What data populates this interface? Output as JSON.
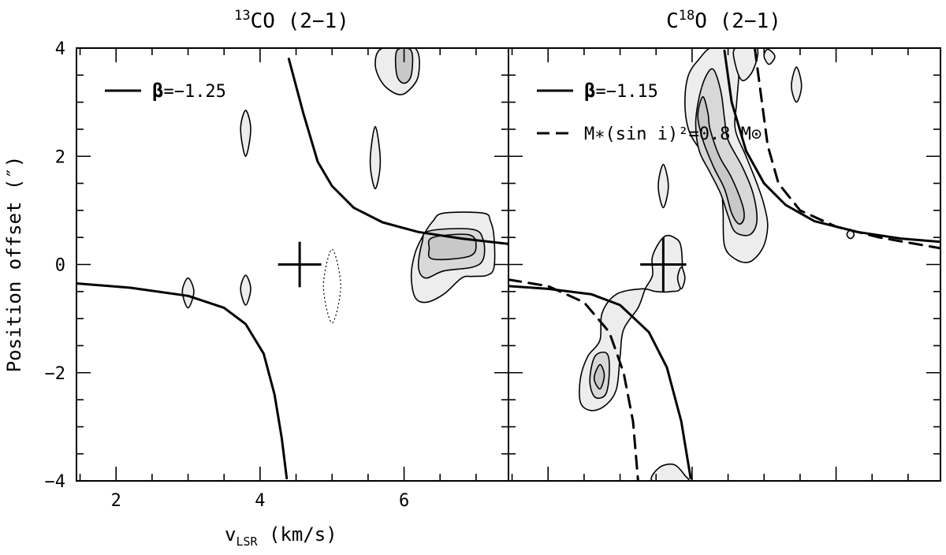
{
  "chart_data": [
    {
      "type": "contour",
      "title": {
        "sup": "13",
        "rest": "CO (2−1)"
      },
      "xlabel": {
        "main": "v",
        "sub": "LSR",
        "rest": " (km/s)"
      },
      "ylabel": "Position offset (″)",
      "xlim": [
        1.45,
        7.45
      ],
      "ylim": [
        -4,
        4
      ],
      "xticks": [
        2,
        4,
        6
      ],
      "yticks": [
        -4,
        -2,
        0,
        2,
        4
      ],
      "xtick_labels": [
        "2",
        "4",
        "6"
      ],
      "ytick_labels": [
        "−4",
        "−2",
        "0",
        "2",
        "4"
      ],
      "grid": false,
      "legend": {
        "placement": "top-left",
        "entries": [
          {
            "style": "solid",
            "symbol": "β",
            "text": "=−1.25"
          }
        ]
      },
      "model_curves": [
        {
          "style": "solid",
          "points": [
            [
              4.4,
              3.8
            ],
            [
              4.6,
              2.8
            ],
            [
              4.8,
              1.9
            ],
            [
              5.0,
              1.45
            ],
            [
              5.3,
              1.05
            ],
            [
              5.7,
              0.78
            ],
            [
              6.2,
              0.6
            ],
            [
              6.8,
              0.48
            ],
            [
              7.45,
              0.38
            ]
          ]
        },
        {
          "style": "solid",
          "points": [
            [
              1.45,
              -0.35
            ],
            [
              2.2,
              -0.43
            ],
            [
              3.0,
              -0.58
            ],
            [
              3.5,
              -0.8
            ],
            [
              3.8,
              -1.1
            ],
            [
              4.05,
              -1.65
            ],
            [
              4.2,
              -2.4
            ],
            [
              4.3,
              -3.2
            ],
            [
              4.37,
              -3.95
            ]
          ]
        }
      ],
      "contours": [
        {
          "level": "low",
          "points": [
            [
              6.15,
              4.0
            ],
            [
              6.2,
              3.5
            ],
            [
              6.05,
              3.2
            ],
            [
              5.9,
              3.15
            ],
            [
              5.7,
              3.35
            ],
            [
              5.6,
              3.7
            ],
            [
              5.7,
              4.0
            ]
          ]
        },
        {
          "level": "high",
          "points": [
            [
              6.1,
              3.95
            ],
            [
              6.1,
              3.5
            ],
            [
              6.0,
              3.35
            ],
            [
              5.9,
              3.5
            ],
            [
              5.9,
              3.95
            ]
          ]
        },
        {
          "level": "low",
          "points": [
            [
              6.4,
              0.8
            ],
            [
              6.55,
              0.95
            ],
            [
              7.1,
              0.95
            ],
            [
              7.2,
              0.8
            ],
            [
              7.25,
              0.5
            ],
            [
              7.25,
              -0.05
            ],
            [
              7.15,
              -0.2
            ],
            [
              6.95,
              -0.22
            ],
            [
              6.8,
              -0.25
            ],
            [
              6.55,
              -0.55
            ],
            [
              6.3,
              -0.7
            ],
            [
              6.15,
              -0.6
            ],
            [
              6.1,
              -0.2
            ],
            [
              6.15,
              0.2
            ],
            [
              6.25,
              0.5
            ]
          ]
        },
        {
          "level": "mid",
          "points": [
            [
              6.35,
              0.62
            ],
            [
              6.95,
              0.65
            ],
            [
              7.1,
              0.45
            ],
            [
              7.1,
              0.1
            ],
            [
              6.95,
              -0.05
            ],
            [
              6.55,
              -0.12
            ],
            [
              6.3,
              -0.25
            ],
            [
              6.2,
              -0.05
            ],
            [
              6.25,
              0.4
            ]
          ]
        },
        {
          "level": "high",
          "points": [
            [
              6.4,
              0.5
            ],
            [
              6.9,
              0.55
            ],
            [
              7.0,
              0.35
            ],
            [
              6.9,
              0.15
            ],
            [
              6.4,
              0.1
            ],
            [
              6.35,
              0.3
            ]
          ]
        },
        {
          "level": "low",
          "points": [
            [
              3.8,
              2.85
            ],
            [
              3.87,
              2.5
            ],
            [
              3.8,
              2.0
            ],
            [
              3.73,
              2.5
            ]
          ]
        },
        {
          "level": "low",
          "points": [
            [
              5.6,
              2.55
            ],
            [
              5.67,
              1.9
            ],
            [
              5.6,
              1.4
            ],
            [
              5.53,
              1.9
            ]
          ]
        },
        {
          "level": "low",
          "points": [
            [
              3.0,
              -0.25
            ],
            [
              3.08,
              -0.5
            ],
            [
              3.0,
              -0.8
            ],
            [
              2.92,
              -0.5
            ]
          ]
        },
        {
          "level": "low",
          "points": [
            [
              3.8,
              -0.2
            ],
            [
              3.87,
              -0.45
            ],
            [
              3.8,
              -0.75
            ],
            [
              3.73,
              -0.45
            ]
          ]
        },
        {
          "level": "negative",
          "points": [
            [
              5.0,
              0.28
            ],
            [
              5.12,
              -0.4
            ],
            [
              5.0,
              -1.08
            ],
            [
              4.88,
              -0.4
            ]
          ]
        }
      ],
      "marker": {
        "type": "cross",
        "x": 4.55,
        "y": 0.0,
        "half_width": 0.3,
        "half_height": 0.42
      }
    },
    {
      "type": "contour",
      "title": {
        "pre": "C",
        "sup": "18",
        "rest": "O (2−1)"
      },
      "xlim": [
        1.45,
        7.45
      ],
      "ylim": [
        -4,
        4
      ],
      "xticks": [
        2,
        4,
        6
      ],
      "yticks": [
        -4,
        -2,
        0,
        2,
        4
      ],
      "grid": false,
      "legend": {
        "placement": "top-left",
        "entries": [
          {
            "style": "solid",
            "symbol": "β",
            "text": "=−1.15"
          },
          {
            "style": "dashed",
            "text": "M∗(sin i)²=0.8 M⊙"
          }
        ]
      },
      "model_curves": [
        {
          "style": "solid",
          "points": [
            [
              4.45,
              3.95
            ],
            [
              4.55,
              3.0
            ],
            [
              4.75,
              2.1
            ],
            [
              5.0,
              1.5
            ],
            [
              5.3,
              1.1
            ],
            [
              5.7,
              0.8
            ],
            [
              6.3,
              0.6
            ],
            [
              6.9,
              0.48
            ],
            [
              7.45,
              0.42
            ]
          ]
        },
        {
          "style": "solid",
          "points": [
            [
              1.45,
              -0.4
            ],
            [
              2.0,
              -0.45
            ],
            [
              2.6,
              -0.55
            ],
            [
              3.0,
              -0.75
            ],
            [
              3.4,
              -1.25
            ],
            [
              3.65,
              -1.9
            ],
            [
              3.85,
              -2.9
            ],
            [
              3.98,
              -3.95
            ]
          ]
        },
        {
          "style": "dashed",
          "points": [
            [
              4.87,
              4.0
            ],
            [
              4.95,
              3.2
            ],
            [
              5.05,
              2.2
            ],
            [
              5.2,
              1.5
            ],
            [
              5.5,
              1.0
            ],
            [
              6.0,
              0.7
            ],
            [
              6.6,
              0.5
            ],
            [
              7.45,
              0.3
            ]
          ]
        },
        {
          "style": "dashed",
          "points": [
            [
              1.45,
              -0.28
            ],
            [
              2.0,
              -0.4
            ],
            [
              2.5,
              -0.7
            ],
            [
              2.85,
              -1.25
            ],
            [
              3.05,
              -2.0
            ],
            [
              3.18,
              -2.9
            ],
            [
              3.25,
              -4.0
            ]
          ]
        }
      ],
      "contours": [
        {
          "level": "low",
          "points": [
            [
              4.43,
              4.0
            ],
            [
              4.6,
              4.0
            ],
            [
              4.65,
              3.6
            ],
            [
              4.62,
              3.0
            ],
            [
              4.6,
              2.5
            ],
            [
              4.75,
              2.0
            ],
            [
              4.9,
              1.5
            ],
            [
              5.0,
              1.1
            ],
            [
              5.05,
              0.7
            ],
            [
              4.98,
              0.3
            ],
            [
              4.8,
              0.05
            ],
            [
              4.6,
              0.1
            ],
            [
              4.45,
              0.35
            ],
            [
              4.43,
              1.0
            ],
            [
              4.4,
              1.5
            ],
            [
              4.3,
              1.9
            ],
            [
              4.1,
              2.15
            ],
            [
              3.95,
              2.5
            ],
            [
              3.9,
              3.0
            ],
            [
              3.95,
              3.5
            ],
            [
              4.1,
              3.8
            ],
            [
              4.25,
              4.0
            ]
          ]
        },
        {
          "level": "mid",
          "points": [
            [
              4.3,
              3.6
            ],
            [
              4.4,
              3.2
            ],
            [
              4.45,
              2.7
            ],
            [
              4.5,
              2.3
            ],
            [
              4.7,
              1.8
            ],
            [
              4.85,
              1.3
            ],
            [
              4.9,
              0.8
            ],
            [
              4.8,
              0.55
            ],
            [
              4.6,
              0.6
            ],
            [
              4.5,
              0.9
            ],
            [
              4.4,
              1.3
            ],
            [
              4.25,
              1.7
            ],
            [
              4.1,
              2.1
            ],
            [
              4.05,
              2.6
            ],
            [
              4.1,
              3.1
            ],
            [
              4.2,
              3.5
            ]
          ]
        },
        {
          "level": "high",
          "points": [
            [
              4.15,
              3.1
            ],
            [
              4.22,
              2.8
            ],
            [
              4.25,
              2.5
            ],
            [
              4.38,
              2.0
            ],
            [
              4.55,
              1.6
            ],
            [
              4.7,
              1.1
            ],
            [
              4.72,
              0.85
            ],
            [
              4.65,
              0.75
            ],
            [
              4.55,
              0.95
            ],
            [
              4.45,
              1.4
            ],
            [
              4.3,
              1.8
            ],
            [
              4.15,
              2.3
            ],
            [
              4.08,
              2.75
            ]
          ]
        },
        {
          "level": "low",
          "points": [
            [
              4.6,
              4.0
            ],
            [
              4.9,
              4.0
            ],
            [
              4.85,
              3.6
            ],
            [
              4.7,
              3.4
            ],
            [
              4.6,
              3.7
            ]
          ]
        },
        {
          "level": "low",
          "points": [
            [
              5.05,
              3.98
            ],
            [
              5.15,
              3.85
            ],
            [
              5.07,
              3.7
            ],
            [
              5.0,
              3.85
            ]
          ]
        },
        {
          "level": "low",
          "points": [
            [
              5.45,
              3.65
            ],
            [
              5.52,
              3.3
            ],
            [
              5.45,
              3.0
            ],
            [
              5.38,
              3.3
            ]
          ]
        },
        {
          "level": "low",
          "points": [
            [
              3.6,
              1.85
            ],
            [
              3.67,
              1.45
            ],
            [
              3.6,
              1.05
            ],
            [
              3.53,
              1.45
            ]
          ]
        },
        {
          "level": "low",
          "points": [
            [
              6.2,
              0.65
            ],
            [
              6.25,
              0.55
            ],
            [
              6.2,
              0.48
            ],
            [
              6.15,
              0.55
            ]
          ]
        },
        {
          "level": "low",
          "points": [
            [
              3.45,
              0.15
            ],
            [
              3.6,
              0.5
            ],
            [
              3.75,
              0.5
            ],
            [
              3.85,
              0.3
            ],
            [
              3.85,
              -0.4
            ],
            [
              3.7,
              -0.5
            ],
            [
              3.5,
              -0.5
            ],
            [
              3.3,
              -0.45
            ],
            [
              2.95,
              -0.55
            ],
            [
              2.75,
              -0.9
            ],
            [
              2.72,
              -1.4
            ],
            [
              2.55,
              -1.7
            ],
            [
              2.45,
              -2.1
            ],
            [
              2.45,
              -2.55
            ],
            [
              2.6,
              -2.7
            ],
            [
              2.8,
              -2.6
            ],
            [
              2.95,
              -2.3
            ],
            [
              3.0,
              -1.7
            ],
            [
              3.05,
              -1.2
            ],
            [
              3.25,
              -0.8
            ],
            [
              3.35,
              -0.45
            ],
            [
              3.45,
              -0.2
            ]
          ]
        },
        {
          "level": "mid",
          "points": [
            [
              2.65,
              -1.7
            ],
            [
              2.82,
              -1.65
            ],
            [
              2.85,
              -2.0
            ],
            [
              2.8,
              -2.4
            ],
            [
              2.65,
              -2.45
            ],
            [
              2.58,
              -2.15
            ]
          ]
        },
        {
          "level": "high",
          "points": [
            [
              2.72,
              -1.85
            ],
            [
              2.78,
              -2.05
            ],
            [
              2.72,
              -2.3
            ],
            [
              2.64,
              -2.1
            ]
          ]
        },
        {
          "level": "low",
          "points": [
            [
              3.85,
              -0.05
            ],
            [
              3.9,
              -0.25
            ],
            [
              3.85,
              -0.45
            ],
            [
              3.8,
              -0.25
            ]
          ]
        },
        {
          "level": "low",
          "points": [
            [
              3.55,
              -3.75
            ],
            [
              3.75,
              -3.7
            ],
            [
              3.9,
              -3.9
            ],
            [
              3.92,
              -4.0
            ],
            [
              3.45,
              -4.0
            ]
          ]
        }
      ],
      "marker": {
        "type": "cross",
        "x": 3.6,
        "y": 0.0,
        "half_width": 0.32,
        "half_height": 0.5
      }
    }
  ]
}
